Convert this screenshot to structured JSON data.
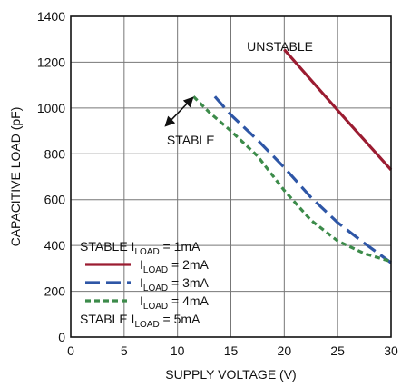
{
  "colors": {
    "series_1mA": "#ffffff",
    "series_2mA": "#9b1c31",
    "series_3mA": "#2e56a6",
    "series_4mA": "#3c8b4a",
    "series_5mA": "#ffffff",
    "grid": "#777777",
    "axis": "#111111"
  },
  "chart_data": {
    "type": "line",
    "title": "",
    "xlabel": "SUPPLY VOLTAGE (V)",
    "ylabel": "CAPACITIVE LOAD (pF)",
    "xlim": [
      0,
      30
    ],
    "ylim": [
      0,
      1400
    ],
    "xticks": [
      0,
      5,
      10,
      15,
      20,
      25,
      30
    ],
    "yticks": [
      0,
      200,
      400,
      600,
      800,
      1000,
      1200,
      1400
    ],
    "grid": true,
    "legend_position": "bottom-left",
    "annotations": [
      {
        "text": "UNSTABLE",
        "x": 16.5,
        "y": 1250
      },
      {
        "text": "STABLE",
        "x": 9,
        "y": 840
      }
    ],
    "series": [
      {
        "name": "STABLE I_LOAD = 1mA",
        "label_main": "STABLE I",
        "label_sub": "LOAD",
        "label_tail": " = 1mA",
        "style": "none",
        "points": []
      },
      {
        "name": "I_LOAD = 2mA",
        "label_main": "I",
        "label_sub": "LOAD",
        "label_tail": " = 2mA",
        "style": "solid",
        "points": [
          [
            20,
            1255
          ],
          [
            25,
            990
          ],
          [
            30,
            730
          ]
        ]
      },
      {
        "name": "I_LOAD = 3mA",
        "label_main": "I",
        "label_sub": "LOAD",
        "label_tail": " = 3mA",
        "style": "long-dash",
        "points": [
          [
            13.5,
            1050
          ],
          [
            15,
            970
          ],
          [
            17.5,
            860
          ],
          [
            20,
            740
          ],
          [
            22.5,
            610
          ],
          [
            25,
            500
          ],
          [
            27.5,
            410
          ],
          [
            30,
            325
          ]
        ]
      },
      {
        "name": "I_LOAD = 4mA",
        "label_main": "I",
        "label_sub": "LOAD",
        "label_tail": " = 4mA",
        "style": "short-dash",
        "points": [
          [
            11.5,
            1050
          ],
          [
            13,
            980
          ],
          [
            15,
            900
          ],
          [
            17.5,
            790
          ],
          [
            20,
            640
          ],
          [
            22.5,
            510
          ],
          [
            25,
            420
          ],
          [
            27.5,
            365
          ],
          [
            30,
            330
          ]
        ]
      },
      {
        "name": "STABLE I_LOAD = 5mA",
        "label_main": "STABLE I",
        "label_sub": "LOAD",
        "label_tail": " = 5mA",
        "style": "none",
        "points": []
      }
    ]
  }
}
